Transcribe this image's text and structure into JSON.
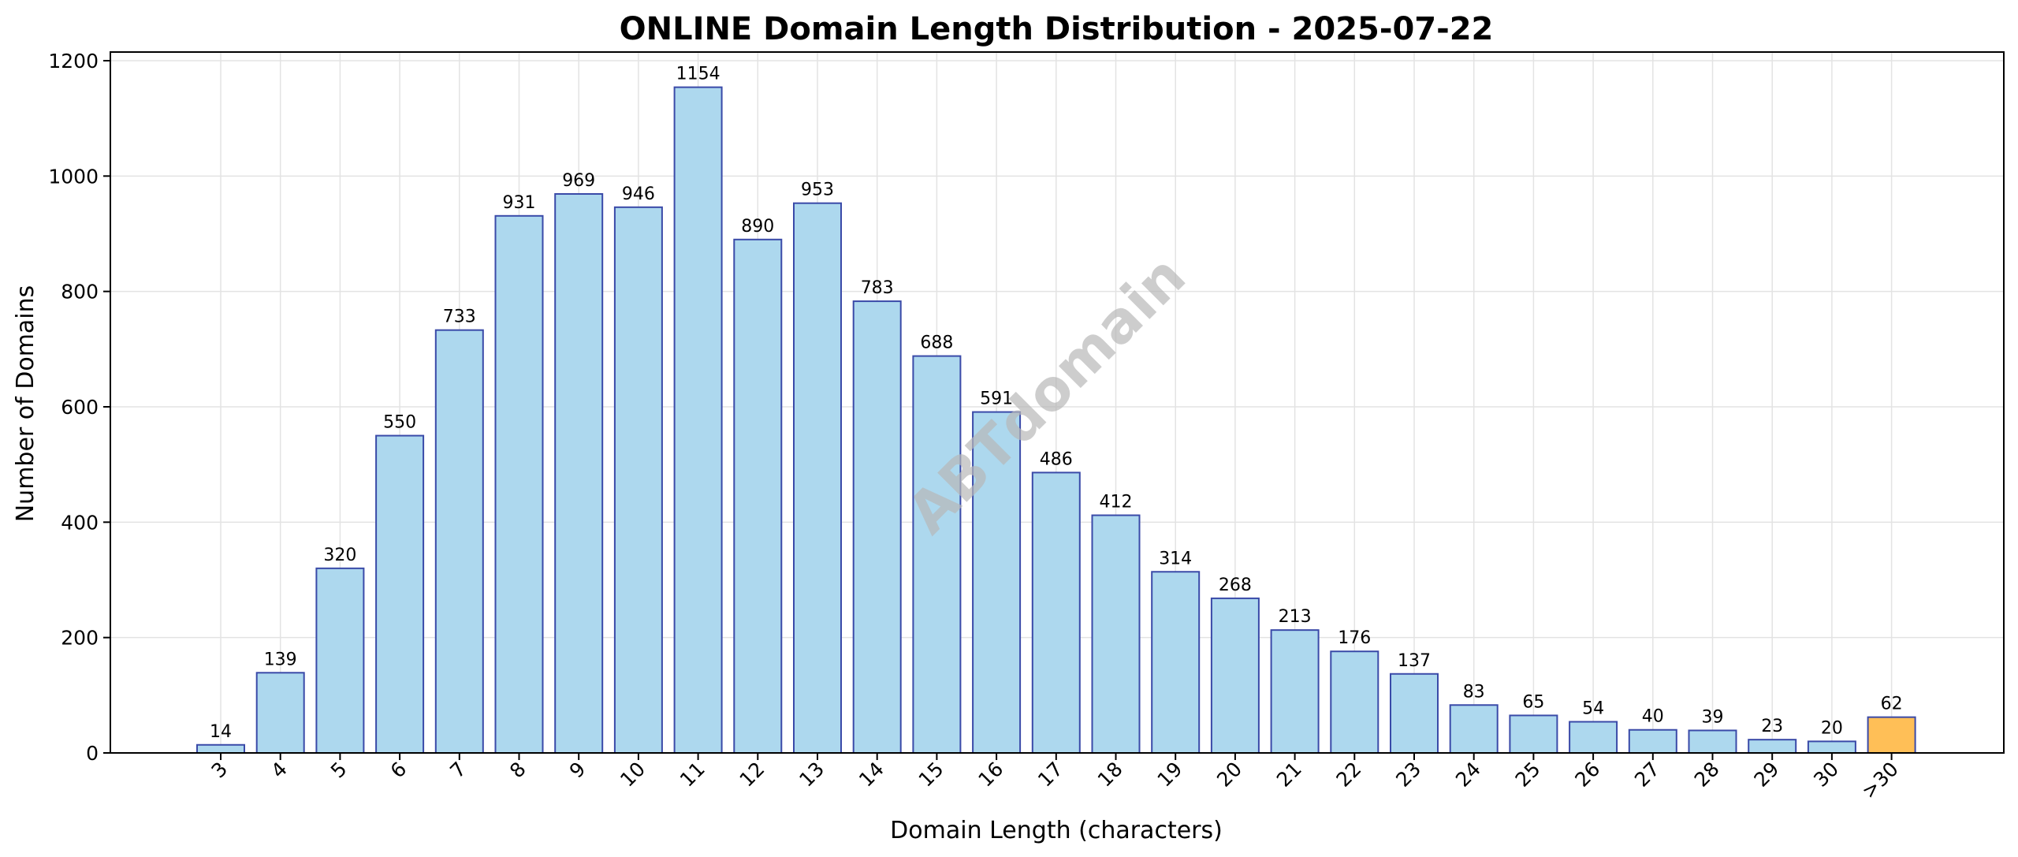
{
  "chart_data": {
    "type": "bar",
    "title": "ONLINE Domain Length Distribution - 2025-07-22",
    "xlabel": "Domain Length (characters)",
    "ylabel": "Number of Domains",
    "categories": [
      "3",
      "4",
      "5",
      "6",
      "7",
      "8",
      "9",
      "10",
      "11",
      "12",
      "13",
      "14",
      "15",
      "16",
      "17",
      "18",
      "19",
      "20",
      "21",
      "22",
      "23",
      "24",
      "25",
      "26",
      "27",
      "28",
      "29",
      "30",
      ">30"
    ],
    "values": [
      14,
      139,
      320,
      550,
      733,
      931,
      969,
      946,
      1154,
      890,
      953,
      783,
      688,
      591,
      486,
      412,
      314,
      268,
      213,
      176,
      137,
      83,
      65,
      54,
      40,
      39,
      23,
      20,
      62
    ],
    "ylim": [
      0,
      1215
    ],
    "yticks": [
      0,
      200,
      400,
      600,
      800,
      1000,
      1200
    ],
    "grid": true,
    "colors": {
      "bar": "#add8ee",
      "bar_highlight": "#ffbf57",
      "bar_edge": "#3a4aa8",
      "grid": "#e3e3e3"
    },
    "watermark": "ABTdomain"
  }
}
